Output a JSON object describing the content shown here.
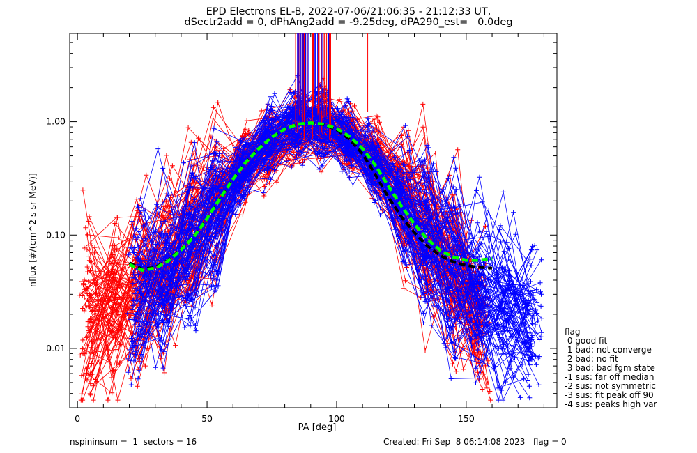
{
  "header": {
    "line1": "EPD Electrons EL-B, 2022-07-06/21:06:35 - 21:12:33 UT,",
    "line2": "dSectr2add = 0, dPhAng2add = -9.25deg, dPA290_est=   0.0deg"
  },
  "axes": {
    "xlabel": "PA [deg]",
    "ylabel": "nflux [#/(cm^2 s sr MeV)]",
    "x_ticks": [
      "0",
      "50",
      "100",
      "150"
    ],
    "y_ticks": [
      "0.01",
      "0.10",
      "1.00"
    ]
  },
  "legend": {
    "title": "flag",
    "items": [
      " 0 good fit",
      " 1 bad: not converge",
      " 2 bad: no fit",
      " 3 bad: bad fgm state",
      "-1 sus: far off median",
      "-2 sus: not symmetric",
      "-3 sus: fit peak off 90",
      "-4 sus: peaks high var"
    ]
  },
  "footer": {
    "left": "nspininsum =  1  sectors = 16",
    "right": "Created: Fri Sep  8 06:14:08 2023   flag = 0"
  },
  "colors": {
    "series_red": "#ff0000",
    "series_blue": "#0000ff",
    "median_fit": "#000000",
    "model_fit": "#00ff00"
  },
  "chart_data": {
    "type": "line",
    "xlim": [
      -3,
      185
    ],
    "ylim": [
      0.003,
      6.0
    ],
    "yscale": "log",
    "grid": false,
    "series": [
      {
        "color": "red",
        "x": [
          2,
          5,
          8,
          12,
          18,
          22,
          30,
          40,
          50,
          60,
          70,
          80,
          90,
          100,
          110,
          120,
          130,
          140,
          150,
          155,
          158
        ],
        "y": [
          0.02,
          0.022,
          0.024,
          0.026,
          0.03,
          0.035,
          0.045,
          0.08,
          0.17,
          0.34,
          0.55,
          0.8,
          1.0,
          0.85,
          0.62,
          0.34,
          0.16,
          0.075,
          0.035,
          0.02,
          0.014
        ]
      },
      {
        "color": "blue",
        "x": [
          21,
          25,
          30,
          40,
          50,
          60,
          70,
          80,
          90,
          100,
          110,
          120,
          130,
          140,
          150,
          160,
          170,
          178
        ],
        "y": [
          0.03,
          0.035,
          0.042,
          0.065,
          0.14,
          0.3,
          0.58,
          0.88,
          1.02,
          0.86,
          0.58,
          0.3,
          0.13,
          0.06,
          0.03,
          0.025,
          0.022,
          0.018
        ]
      },
      {
        "color": "black",
        "style": "dashed",
        "x": [
          20,
          25,
          30,
          35,
          40,
          45,
          50,
          55,
          60,
          65,
          70,
          75,
          80,
          85,
          90,
          95,
          100,
          105,
          110,
          115,
          120,
          125,
          130,
          135,
          140,
          145,
          150,
          155,
          160
        ],
        "y": [
          0.057,
          0.05,
          0.052,
          0.06,
          0.075,
          0.098,
          0.14,
          0.21,
          0.31,
          0.44,
          0.58,
          0.73,
          0.86,
          0.95,
          0.975,
          0.94,
          0.85,
          0.7,
          0.52,
          0.34,
          0.215,
          0.145,
          0.105,
          0.08,
          0.066,
          0.058,
          0.054,
          0.052,
          0.051
        ]
      },
      {
        "color": "green",
        "style": "dashed",
        "x": [
          20,
          25,
          30,
          35,
          40,
          45,
          50,
          55,
          60,
          65,
          70,
          75,
          80,
          85,
          90,
          95,
          100,
          105,
          110,
          115,
          120,
          125,
          130,
          135,
          140,
          145,
          150,
          155,
          160
        ],
        "y": [
          0.055,
          0.049,
          0.051,
          0.059,
          0.074,
          0.097,
          0.14,
          0.21,
          0.31,
          0.44,
          0.58,
          0.73,
          0.86,
          0.95,
          0.975,
          0.95,
          0.87,
          0.74,
          0.58,
          0.41,
          0.27,
          0.18,
          0.125,
          0.092,
          0.073,
          0.064,
          0.06,
          0.06,
          0.062
        ]
      }
    ]
  }
}
